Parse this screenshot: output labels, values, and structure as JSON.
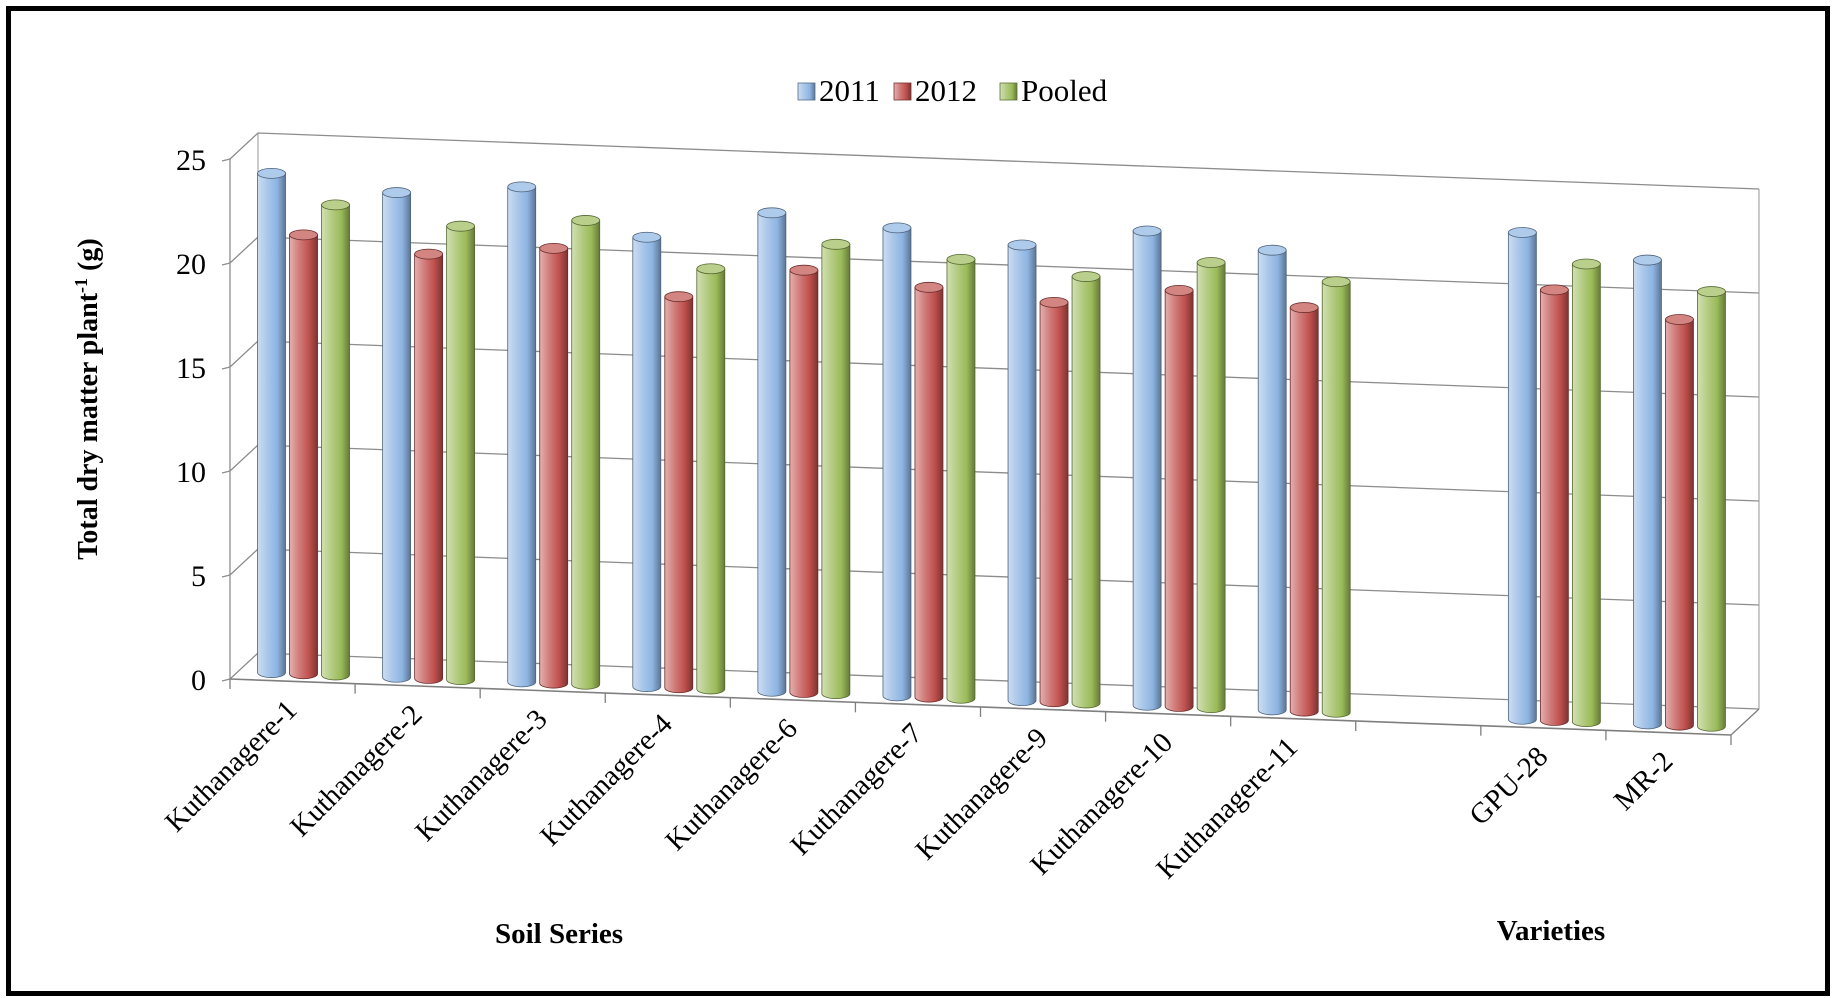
{
  "chart_data": {
    "type": "bar",
    "style": "3d-cylinder",
    "ylabel": "Total dry matter plant",
    "ylabel_superscript": "-1",
    "ylabel_unit": " (g)",
    "ylim": [
      0,
      25
    ],
    "yticks": [
      "0",
      "5",
      "10",
      "15",
      "20",
      "25"
    ],
    "grid": true,
    "legend_position": "top",
    "categories": [
      "Kuthanagere-1",
      "Kuthanagere-2",
      "Kuthanagere-3",
      "Kuthanagere-4",
      "Kuthanagere-6",
      "Kuthanagere-7",
      "Kuthanagere-9",
      "Kuthanagere-10",
      "Kuthanagere-11",
      "",
      "GPU-28",
      "MR-2"
    ],
    "series": [
      {
        "name": "2011",
        "color": "#8DB4E2",
        "values": [
          24.0,
          23.3,
          23.8,
          21.6,
          23.0,
          22.5,
          21.9,
          22.8,
          22.1,
          null,
          23.4,
          22.3
        ]
      },
      {
        "name": "2012",
        "color": "#C0504D",
        "values": [
          21.1,
          20.4,
          20.9,
          18.8,
          20.3,
          19.7,
          19.2,
          20.0,
          19.4,
          null,
          20.7,
          19.5
        ]
      },
      {
        "name": "Pooled",
        "color": "#9BBB59",
        "values": [
          22.6,
          21.8,
          22.3,
          20.2,
          21.6,
          21.1,
          20.5,
          21.4,
          20.7,
          null,
          22.0,
          20.9
        ]
      }
    ],
    "group_labels": [
      "Soil Series",
      "Varieties"
    ]
  }
}
